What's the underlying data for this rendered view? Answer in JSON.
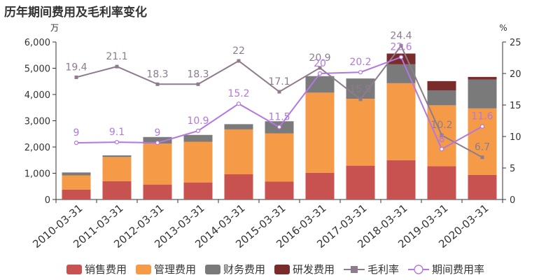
{
  "chart_data": {
    "type": "bar",
    "title": "历年期间费用及毛利率变化",
    "left_unit": "万",
    "right_unit": "%",
    "categories": [
      "2010-03-31",
      "2011-03-31",
      "2012-03-31",
      "2013-03-31",
      "2014-03-31",
      "2015-03-31",
      "2016-03-31",
      "2017-03-31",
      "2018-03-31",
      "2019-03-31",
      "2020-03-31"
    ],
    "ylim_left": [
      0,
      6000
    ],
    "yticks_left": [
      "0",
      "1,000",
      "2,000",
      "3,000",
      "4,000",
      "5,000",
      "6,000"
    ],
    "ylim_right": [
      0,
      25
    ],
    "yticks_right": [
      "0",
      "5",
      "10",
      "15",
      "20",
      "25"
    ],
    "stacked": true,
    "series": [
      {
        "name": "销售费用",
        "type": "bar",
        "color": "#c85250",
        "values": [
          380,
          700,
          570,
          650,
          960,
          680,
          1020,
          1290,
          1500,
          1270,
          940
        ]
      },
      {
        "name": "管理费用",
        "type": "bar",
        "color": "#f59a47",
        "values": [
          540,
          920,
          1560,
          1550,
          1710,
          1840,
          3050,
          2550,
          2930,
          2320,
          2530
        ]
      },
      {
        "name": "财务费用",
        "type": "bar",
        "color": "#7a7a7a",
        "values": [
          110,
          60,
          250,
          260,
          200,
          460,
          630,
          770,
          720,
          570,
          1100
        ]
      },
      {
        "name": "研发费用",
        "type": "bar",
        "color": "#7a2b2b",
        "values": [
          0,
          0,
          0,
          0,
          0,
          0,
          0,
          0,
          410,
          350,
          100
        ]
      },
      {
        "name": "毛利率",
        "type": "line",
        "axis": "right",
        "color": "#8e7b8e",
        "marker": "square",
        "values": [
          19.4,
          21.1,
          18.3,
          18.3,
          22,
          17.1,
          20.9,
          15.9,
          24.4,
          10.2,
          6.7
        ],
        "labels": [
          "19.4",
          "21.1",
          "18.3",
          "18.3",
          "22",
          "17.1",
          "20.9",
          "15.9",
          "24.4",
          "10.2",
          "6.7"
        ]
      },
      {
        "name": "期间费用率",
        "type": "line",
        "axis": "right",
        "color": "#b278e0",
        "marker": "circle",
        "values": [
          9,
          9.1,
          9,
          10.9,
          15.2,
          11.5,
          20,
          20.2,
          22.6,
          8,
          11.6
        ],
        "labels": [
          "9",
          "9.1",
          "9",
          "10.9",
          "15.2",
          "11.5",
          "20",
          "20.2",
          "22.6",
          "8",
          "11.6"
        ]
      }
    ],
    "legend_position": "bottom",
    "grid": false
  }
}
